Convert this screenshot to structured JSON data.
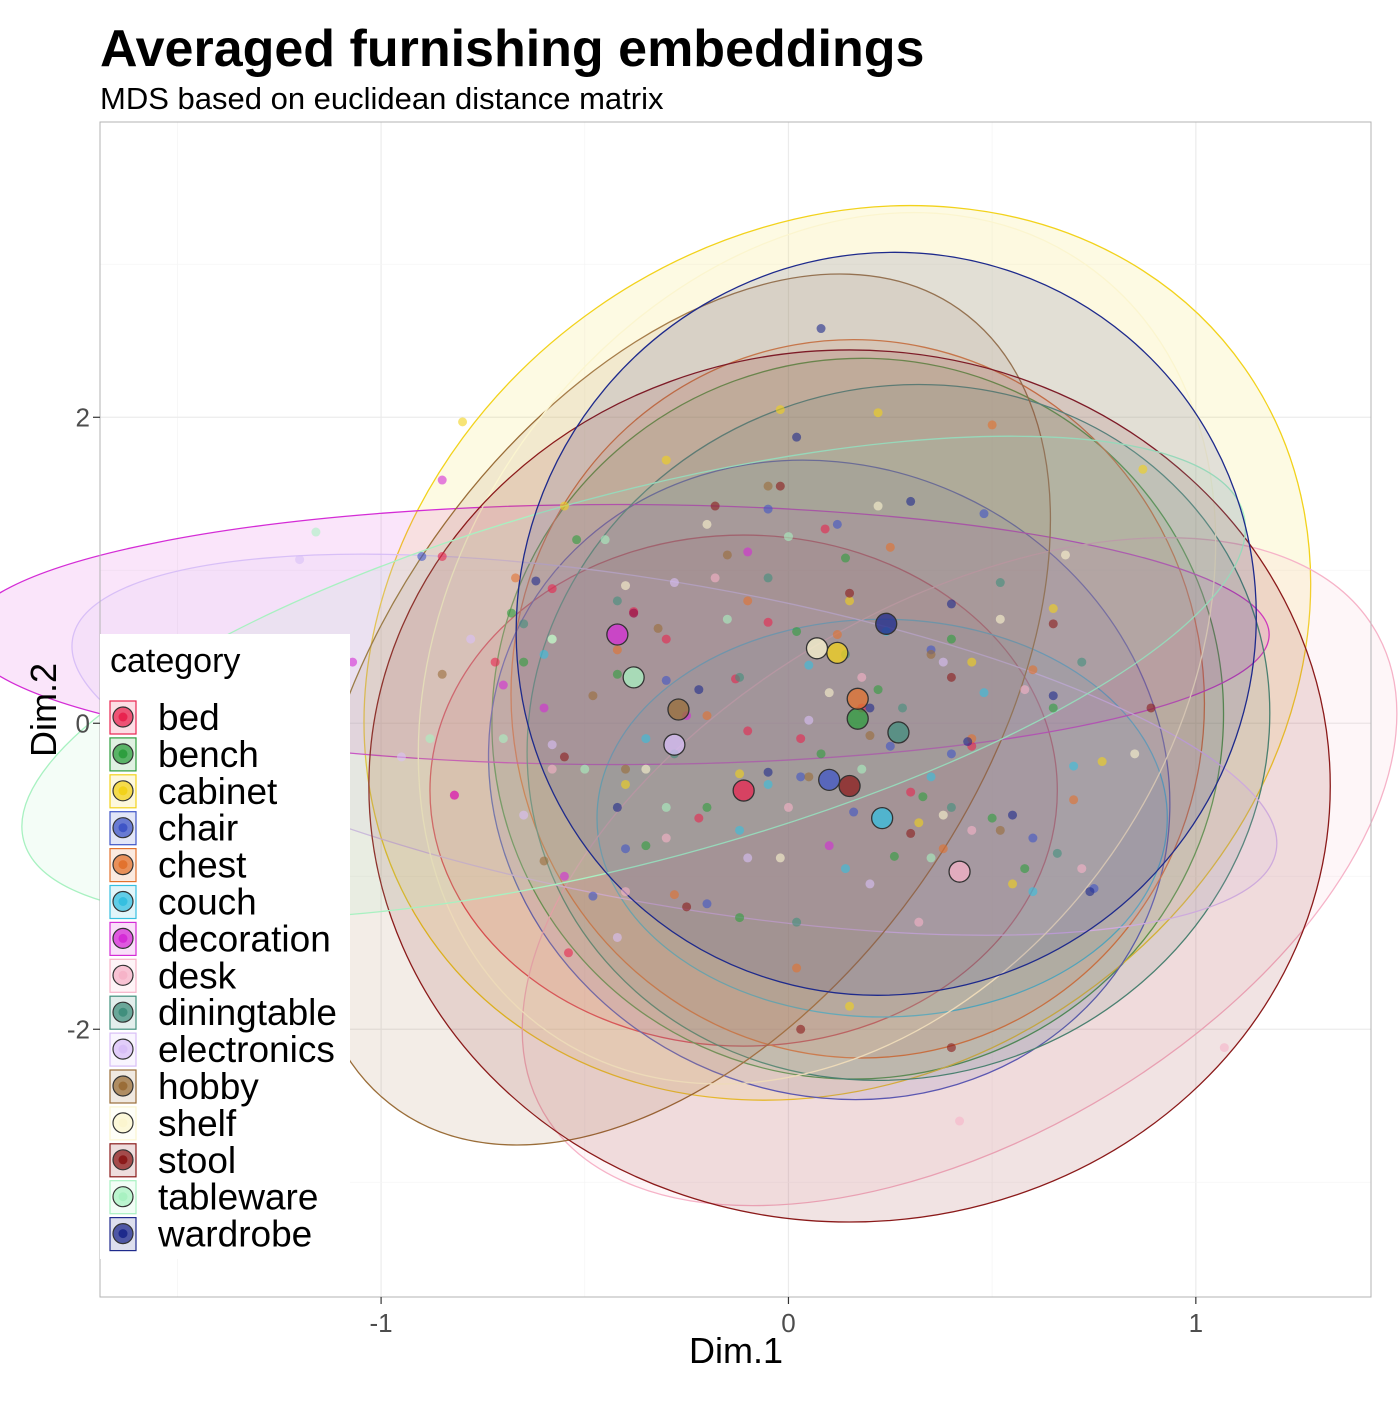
{
  "chart_data": {
    "type": "scatter",
    "title": "Averaged furnishing embeddings",
    "subtitle": "MDS based on euclidean distance matrix",
    "xlabel": "Dim.1",
    "ylabel": "Dim.2",
    "xlim": [
      -1.69,
      1.43
    ],
    "ylim": [
      -3.75,
      3.93
    ],
    "x_ticks": [
      -1,
      0,
      1
    ],
    "x_tick_labels": [
      "-1",
      "0",
      "1"
    ],
    "y_ticks": [
      -2,
      0,
      2
    ],
    "y_tick_labels": [
      "-2",
      "0",
      "2"
    ],
    "grid": true,
    "legend_title": "category",
    "legend_position": "left",
    "series": [
      {
        "name": "bed",
        "color": "#E8244F",
        "centroid": [
          -0.11,
          -0.44
        ],
        "points": [
          [
            -0.85,
            1.09
          ],
          [
            -0.82,
            -0.47
          ],
          [
            -0.72,
            0.4
          ],
          [
            -0.58,
            0.88
          ],
          [
            -0.54,
            -1.5
          ],
          [
            -0.38,
            0.73
          ],
          [
            -0.3,
            0.55
          ],
          [
            -0.22,
            -0.62
          ],
          [
            -0.13,
            0.29
          ],
          [
            -0.05,
            0.66
          ],
          [
            0.03,
            -0.1
          ],
          [
            0.09,
            1.27
          ],
          [
            0.18,
            0.1
          ],
          [
            0.3,
            -0.45
          ],
          [
            0.45,
            -0.15
          ],
          [
            -0.1,
            -0.05
          ]
        ],
        "ellipse": {
          "cx": -0.11,
          "cy": -0.44,
          "rx": 0.77,
          "ry": 1.67,
          "angle": 0
        }
      },
      {
        "name": "bench",
        "color": "#2E9E3E",
        "centroid": [
          0.17,
          0.03
        ],
        "points": [
          [
            -0.68,
            0.72
          ],
          [
            -0.52,
            1.2
          ],
          [
            -0.42,
            0.32
          ],
          [
            -0.35,
            -0.8
          ],
          [
            -0.2,
            -0.55
          ],
          [
            -0.12,
            -1.27
          ],
          [
            0.02,
            0.6
          ],
          [
            0.08,
            -0.2
          ],
          [
            0.14,
            1.08
          ],
          [
            0.22,
            0.22
          ],
          [
            0.26,
            -0.87
          ],
          [
            0.33,
            -0.48
          ],
          [
            0.4,
            0.55
          ],
          [
            0.5,
            -0.62
          ],
          [
            0.58,
            -0.95
          ],
          [
            0.65,
            0.1
          ],
          [
            -0.65,
            0.4
          ]
        ],
        "ellipse": {
          "cx": 0.17,
          "cy": 0.03,
          "rx": 0.9,
          "ry": 2.35,
          "angle": -20
        }
      },
      {
        "name": "cabinet",
        "color": "#F2D21B",
        "centroid": [
          0.12,
          0.46
        ],
        "points": [
          [
            -0.8,
            1.97
          ],
          [
            -0.55,
            1.42
          ],
          [
            -0.3,
            1.72
          ],
          [
            -0.12,
            -0.33
          ],
          [
            -0.02,
            2.05
          ],
          [
            0.15,
            0.8
          ],
          [
            0.22,
            2.03
          ],
          [
            0.32,
            -0.65
          ],
          [
            0.45,
            0.4
          ],
          [
            0.55,
            -1.05
          ],
          [
            0.65,
            0.75
          ],
          [
            0.77,
            -0.25
          ],
          [
            0.87,
            1.66
          ],
          [
            0.15,
            -1.85
          ],
          [
            -0.4,
            -0.4
          ]
        ],
        "ellipse": {
          "cx": 0.12,
          "cy": 0.46,
          "rx": 1.22,
          "ry": 2.75,
          "angle": -35
        }
      },
      {
        "name": "chair",
        "color": "#3F55C6",
        "centroid": [
          0.1,
          -0.37
        ],
        "points": [
          [
            -0.9,
            1.09
          ],
          [
            -0.48,
            -1.13
          ],
          [
            -0.3,
            0.28
          ],
          [
            -0.2,
            -1.18
          ],
          [
            -0.05,
            1.4
          ],
          [
            0.03,
            -0.35
          ],
          [
            0.12,
            1.3
          ],
          [
            0.16,
            -0.58
          ],
          [
            0.25,
            -0.15
          ],
          [
            0.35,
            0.48
          ],
          [
            0.48,
            1.37
          ],
          [
            0.6,
            -0.75
          ],
          [
            0.75,
            -1.08
          ],
          [
            -0.4,
            -0.82
          ],
          [
            0.4,
            -0.2
          ]
        ],
        "ellipse": {
          "cx": 0.1,
          "cy": -0.37,
          "rx": 0.85,
          "ry": 2.05,
          "angle": 25
        }
      },
      {
        "name": "chest",
        "color": "#E2722E",
        "centroid": [
          0.17,
          0.16
        ],
        "points": [
          [
            -0.67,
            0.95
          ],
          [
            -0.42,
            0.48
          ],
          [
            -0.28,
            -1.12
          ],
          [
            -0.1,
            0.8
          ],
          [
            0.02,
            -1.6
          ],
          [
            0.12,
            0.58
          ],
          [
            0.25,
            1.15
          ],
          [
            0.38,
            -0.82
          ],
          [
            0.5,
            1.95
          ],
          [
            0.6,
            0.35
          ],
          [
            0.7,
            -0.5
          ],
          [
            -0.2,
            0.05
          ],
          [
            0.45,
            -0.1
          ]
        ],
        "ellipse": {
          "cx": 0.17,
          "cy": 0.16,
          "rx": 0.85,
          "ry": 2.35,
          "angle": -10
        }
      },
      {
        "name": "couch",
        "color": "#36BFE0",
        "centroid": [
          0.23,
          -0.62
        ],
        "points": [
          [
            -0.6,
            0.45
          ],
          [
            -0.35,
            -0.1
          ],
          [
            -0.12,
            -0.7
          ],
          [
            0.05,
            0.38
          ],
          [
            0.14,
            -0.95
          ],
          [
            0.24,
            0.6
          ],
          [
            0.35,
            -0.35
          ],
          [
            0.48,
            0.2
          ],
          [
            0.6,
            -1.1
          ],
          [
            0.7,
            -0.28
          ],
          [
            -0.05,
            -0.4
          ]
        ],
        "ellipse": {
          "cx": 0.23,
          "cy": -0.62,
          "rx": 0.7,
          "ry": 1.3,
          "angle": 0
        }
      },
      {
        "name": "decoration",
        "color": "#D42CD6",
        "centroid": [
          -0.42,
          0.58
        ],
        "points": [
          [
            -1.47,
            0.5
          ],
          [
            -1.07,
            0.4
          ],
          [
            -0.85,
            1.59
          ],
          [
            -0.82,
            -0.47
          ],
          [
            -0.7,
            0.25
          ],
          [
            -0.55,
            -1.0
          ],
          [
            -0.38,
            0.72
          ],
          [
            -0.25,
            0.05
          ],
          [
            -0.1,
            1.12
          ],
          [
            0.1,
            -0.8
          ],
          [
            -0.6,
            0.1
          ]
        ],
        "ellipse": {
          "cx": -0.42,
          "cy": 0.58,
          "rx": 1.6,
          "ry": 0.85,
          "angle": 0
        }
      },
      {
        "name": "desk",
        "color": "#F6B3C8",
        "centroid": [
          0.42,
          -0.97
        ],
        "points": [
          [
            -0.58,
            -0.3
          ],
          [
            -0.4,
            -1.1
          ],
          [
            -0.18,
            0.95
          ],
          [
            0.0,
            -0.55
          ],
          [
            0.18,
            0.3
          ],
          [
            0.32,
            -1.3
          ],
          [
            0.45,
            -0.7
          ],
          [
            0.58,
            0.22
          ],
          [
            0.72,
            -0.95
          ],
          [
            1.07,
            -2.12
          ],
          [
            0.42,
            -2.6
          ],
          [
            -0.3,
            -0.75
          ]
        ],
        "ellipse": {
          "cx": 0.42,
          "cy": -0.97,
          "rx": 1.18,
          "ry": 1.75,
          "angle": -30
        }
      },
      {
        "name": "diningtable",
        "color": "#418F7D",
        "centroid": [
          0.27,
          -0.06
        ],
        "points": [
          [
            -0.65,
            0.65
          ],
          [
            -0.42,
            0.8
          ],
          [
            -0.28,
            -0.2
          ],
          [
            -0.12,
            0.3
          ],
          [
            0.02,
            -1.3
          ],
          [
            0.14,
            0.45
          ],
          [
            0.28,
            0.1
          ],
          [
            0.4,
            -0.55
          ],
          [
            0.52,
            0.92
          ],
          [
            0.66,
            -0.85
          ],
          [
            0.72,
            0.4
          ],
          [
            -0.05,
            0.95
          ]
        ],
        "ellipse": {
          "cx": 0.27,
          "cy": -0.06,
          "rx": 0.92,
          "ry": 2.25,
          "angle": -20
        }
      },
      {
        "name": "electronics",
        "color": "#D8BFF7",
        "centroid": [
          -0.28,
          -0.14
        ],
        "points": [
          [
            -1.2,
            1.07
          ],
          [
            -0.95,
            -0.22
          ],
          [
            -0.78,
            0.55
          ],
          [
            -0.58,
            -0.14
          ],
          [
            -0.42,
            -1.4
          ],
          [
            -0.28,
            0.92
          ],
          [
            -0.1,
            -0.88
          ],
          [
            0.05,
            0.02
          ],
          [
            0.2,
            -1.05
          ],
          [
            0.38,
            0.4
          ],
          [
            -0.65,
            -0.6
          ]
        ],
        "ellipse": {
          "cx": -0.28,
          "cy": -0.14,
          "rx": 1.5,
          "ry": 1.05,
          "angle": 10
        }
      },
      {
        "name": "hobby",
        "color": "#9A6D38",
        "centroid": [
          -0.27,
          0.09
        ],
        "points": [
          [
            -0.85,
            0.32
          ],
          [
            -0.6,
            -0.9
          ],
          [
            -0.48,
            0.18
          ],
          [
            -0.32,
            0.62
          ],
          [
            -0.15,
            1.1
          ],
          [
            -0.05,
            1.55
          ],
          [
            0.05,
            -0.35
          ],
          [
            0.2,
            -0.08
          ],
          [
            0.35,
            0.45
          ],
          [
            0.52,
            -0.7
          ],
          [
            -0.4,
            -0.3
          ]
        ],
        "ellipse": {
          "cx": -0.27,
          "cy": 0.09,
          "rx": 1.2,
          "ry": 1.95,
          "angle": -55
        }
      },
      {
        "name": "shelf",
        "color": "#FBF5CF",
        "centroid": [
          0.07,
          0.49
        ],
        "points": [
          [
            -0.58,
            0.55
          ],
          [
            -0.35,
            -0.3
          ],
          [
            -0.2,
            1.3
          ],
          [
            -0.02,
            -0.88
          ],
          [
            0.1,
            0.2
          ],
          [
            0.22,
            1.42
          ],
          [
            0.38,
            -0.6
          ],
          [
            0.52,
            0.68
          ],
          [
            0.68,
            1.1
          ],
          [
            0.85,
            -0.2
          ],
          [
            -0.4,
            0.9
          ]
        ],
        "ellipse": {
          "cx": 0.07,
          "cy": 0.49,
          "rx": 1.15,
          "ry": 2.35,
          "angle": -55
        }
      },
      {
        "name": "stool",
        "color": "#8B1A1A",
        "centroid": [
          0.15,
          -0.41
        ],
        "points": [
          [
            -0.55,
            -0.22
          ],
          [
            -0.38,
            0.72
          ],
          [
            -0.18,
            1.42
          ],
          [
            -0.02,
            1.55
          ],
          [
            0.03,
            -2.0
          ],
          [
            0.15,
            0.85
          ],
          [
            0.3,
            -0.72
          ],
          [
            0.4,
            0.3
          ],
          [
            0.65,
            0.65
          ],
          [
            0.89,
            0.1
          ],
          [
            0.4,
            -2.12
          ],
          [
            -0.25,
            -1.2
          ]
        ],
        "ellipse": {
          "cx": 0.15,
          "cy": -0.41,
          "rx": 1.18,
          "ry": 2.85,
          "angle": 0
        }
      },
      {
        "name": "tableware",
        "color": "#A8F1C1",
        "centroid": [
          -0.38,
          0.3
        ],
        "points": [
          [
            -1.16,
            1.25
          ],
          [
            -0.88,
            -0.1
          ],
          [
            -0.7,
            -0.1
          ],
          [
            -0.58,
            0.55
          ],
          [
            -0.45,
            1.2
          ],
          [
            -0.3,
            -0.55
          ],
          [
            -0.15,
            0.68
          ],
          [
            0.0,
            1.22
          ],
          [
            0.18,
            -0.3
          ],
          [
            0.35,
            -0.88
          ],
          [
            -0.5,
            -0.3
          ]
        ],
        "ellipse": {
          "cx": -0.38,
          "cy": 0.3,
          "rx": 1.55,
          "ry": 1.2,
          "angle": -15
        }
      },
      {
        "name": "wardrobe",
        "color": "#1E2A8C",
        "centroid": [
          0.24,
          0.65
        ],
        "points": [
          [
            -0.62,
            0.93
          ],
          [
            -0.42,
            -0.55
          ],
          [
            -0.22,
            0.22
          ],
          [
            -0.05,
            -0.32
          ],
          [
            0.02,
            1.87
          ],
          [
            0.08,
            2.58
          ],
          [
            0.2,
            0.1
          ],
          [
            0.3,
            1.45
          ],
          [
            0.44,
            -0.12
          ],
          [
            0.55,
            -0.6
          ],
          [
            0.65,
            0.18
          ],
          [
            0.74,
            -1.1
          ],
          [
            0.4,
            0.78
          ]
        ],
        "ellipse": {
          "cx": 0.24,
          "cy": 0.65,
          "rx": 0.9,
          "ry": 2.45,
          "angle": 40
        }
      }
    ]
  }
}
